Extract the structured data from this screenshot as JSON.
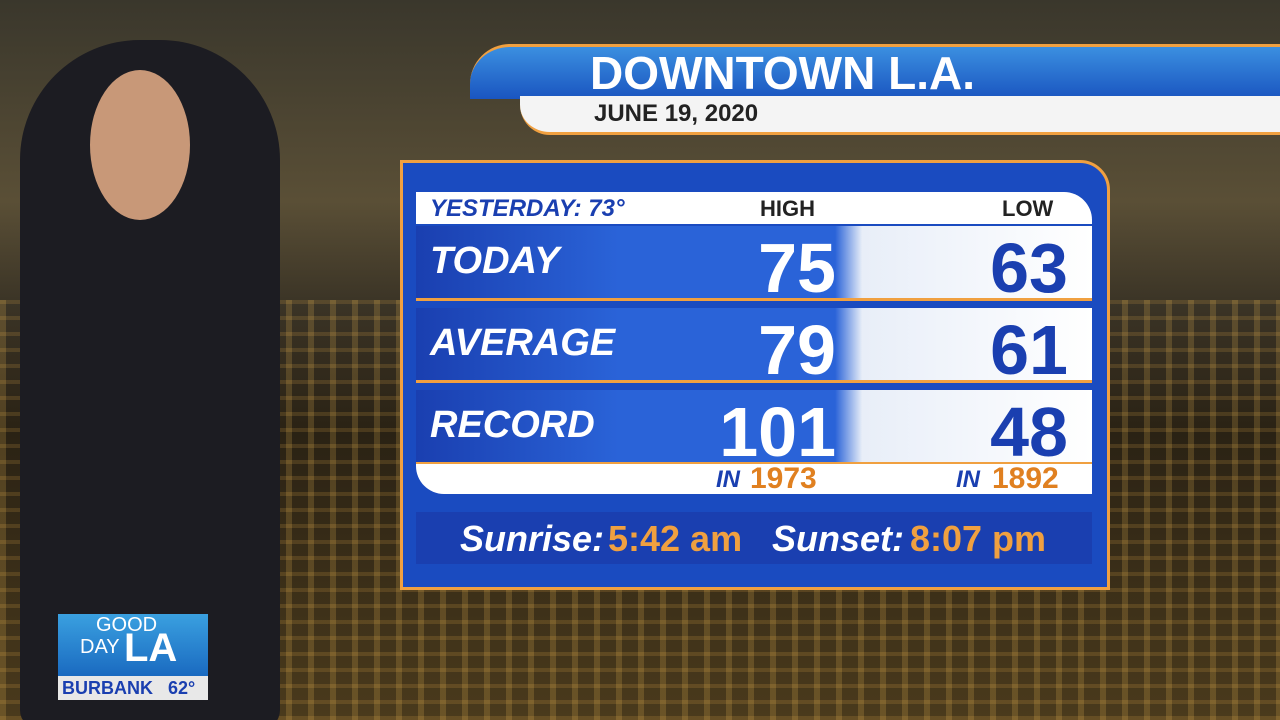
{
  "header": {
    "title": "DOWNTOWN L.A.",
    "date": "JUNE 19, 2020"
  },
  "table": {
    "yesterday": "YESTERDAY: 73°",
    "columns": [
      "HIGH",
      "LOW"
    ],
    "rows": [
      {
        "label": "TODAY",
        "high": 75,
        "low": 63
      },
      {
        "label": "AVERAGE",
        "high": 79,
        "low": 61
      },
      {
        "label": "RECORD",
        "high": 101,
        "low": 48
      }
    ],
    "record_years": {
      "prefix": "IN",
      "high": 1973,
      "low": 1892
    }
  },
  "sun": {
    "sunrise_label": "Sunrise:",
    "sunrise": "5:42 am",
    "sunset_label": "Sunset:",
    "sunset": "8:07 pm"
  },
  "logo": {
    "line1": "GOOD",
    "line2": "DAY",
    "line3": "LA",
    "city": "BURBANK",
    "temp": "62°"
  }
}
